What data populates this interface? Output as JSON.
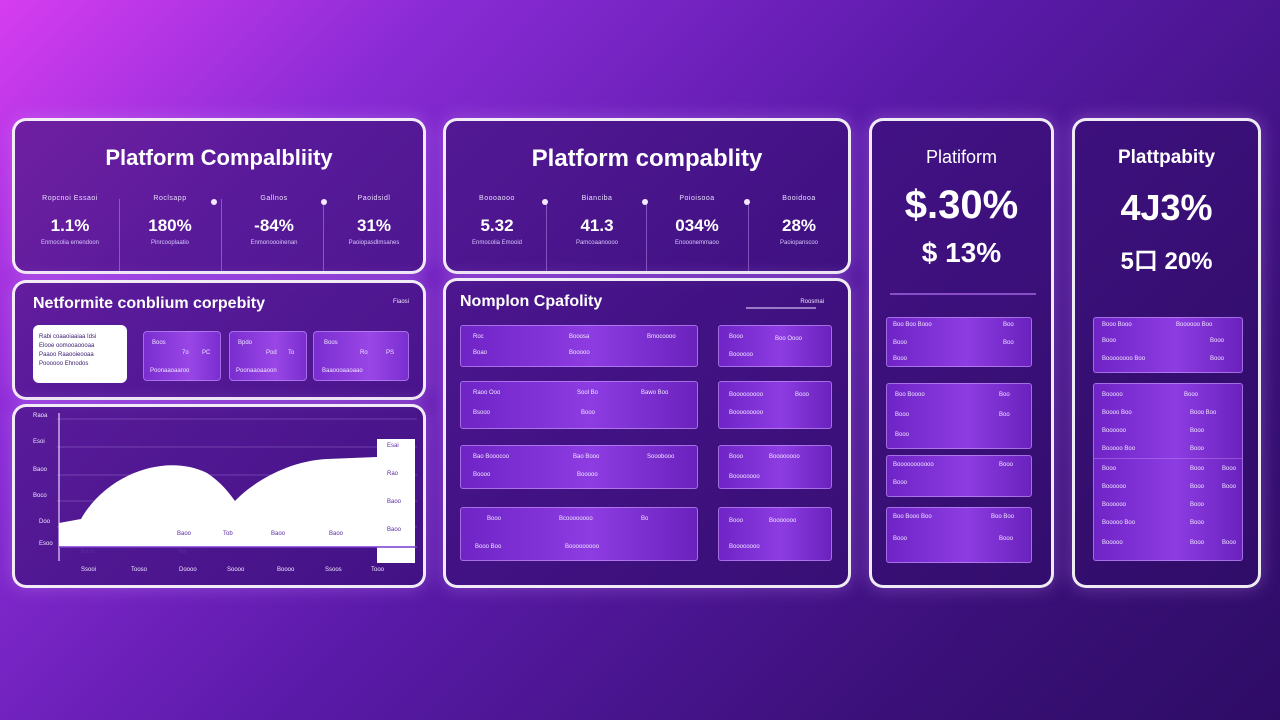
{
  "panel1": {
    "title": "Platform Compalbliity",
    "stats": [
      {
        "label": "Ropcnoi Essaoi",
        "value": "1.1%",
        "sub": "Enmocolia emendoon"
      },
      {
        "label": "Roclsapp",
        "value": "180%",
        "sub": "Pinrcooplaatio"
      },
      {
        "label": "Gallnos",
        "value": "-84%",
        "sub": "Enmonoooinenan"
      },
      {
        "label": "Paoidsidl",
        "value": "31%",
        "sub": "Paoiopasdlmsanes"
      }
    ],
    "section_title": "Netformite conblium corpebity",
    "section_tag": "Fiaosi",
    "info_lines": [
      "Rabi coaaoiaaiaa Idsi",
      "Elooe oomooaoooaa",
      "Paaoo Raaooieooaa",
      "Poooooo Ehnodos"
    ],
    "mini_cards": [
      {
        "top": "Boos",
        "a": "7o",
        "b": "PC",
        "bottom": "Poonaaoaaroo"
      },
      {
        "top": "Bpdo",
        "a": "Pod",
        "b": "To",
        "bottom": "Poonaaoaaoon"
      },
      {
        "top": "Boos",
        "a": "Ro",
        "b": "PS",
        "bottom": "Baaoooaaoaao"
      }
    ],
    "chart": {
      "y_labels": [
        "Raoa",
        "Esoi",
        "Baoo",
        "Boco",
        "Doo",
        "Esoo"
      ],
      "inner_labels": [
        "Baoo",
        "Baoo",
        "Tob",
        "Baoo",
        "Baoo",
        "Yos"
      ],
      "x_labels": [
        "Ssooi",
        "Tooso",
        "Doooo",
        "Soooo",
        "Boooo",
        "Ssoos",
        "Tooo"
      ],
      "right_labels": [
        "Esai",
        "Rao",
        "Baoo",
        "Baoo"
      ]
    }
  },
  "panel2": {
    "title": "Platform compablity",
    "stats": [
      {
        "label": "Boooaooo",
        "value": "5.32",
        "sub": "Enmocolia Emooid"
      },
      {
        "label": "Bianciba",
        "value": "41.3",
        "sub": "Pamcoaanoooo"
      },
      {
        "label": "Poioisooa",
        "value": "034%",
        "sub": "Enooonemmaoo"
      },
      {
        "label": "Booidooa",
        "value": "28%",
        "sub": "Paoiopanscoo"
      }
    ],
    "section_title": "Nomplon Cpafolity",
    "section_tag": "Roosmai",
    "rows_left": [
      {
        "a": "Roc",
        "b": "Booosa",
        "c": "Bmocoooo",
        "d": "Boao",
        "e": "Booooo"
      },
      {
        "a": "Raoo Ooo",
        "b": "Sool Bo",
        "c": "Bawo Boo",
        "d": "Bsooo",
        "e": "Booo"
      },
      {
        "a": "Bao Booocoo",
        "b": "Bao Booo",
        "c": "Sooobooo",
        "d": "Boooo",
        "e": "Booooo"
      },
      {
        "a": "Booo",
        "b": "Bcoooooooo",
        "c": "Bo",
        "d": "Booo Boo",
        "e": "Booooooooo"
      }
    ],
    "rows_right": [
      {
        "a": "Booo",
        "b": "Boo Oooo",
        "c": "Boooooo"
      },
      {
        "a": "Booooooooo",
        "b": "Booo",
        "c": "Booooooooo"
      },
      {
        "a": "Booo",
        "b": "Boooooooo",
        "c": "Boooooooo"
      },
      {
        "a": "Booo",
        "b": "Booooooo",
        "c": "Boooooooo"
      }
    ]
  },
  "panel3": {
    "title": "Platiform",
    "value1": "$.30%",
    "value2": "$ 13%",
    "rows": [
      {
        "a": "Boo Boo Booo",
        "b": "Boo",
        "c": "Booo"
      },
      {
        "a": "Boo Boooo",
        "b": "Boo",
        "c": "Booo"
      },
      {
        "a": "Booooooooooo",
        "b": "Booo",
        "c": "Booo"
      },
      {
        "a": "Boo Booo Boo",
        "b": "Boo Boo",
        "c": "Booo"
      }
    ]
  },
  "panel4": {
    "title": "Plattpabity",
    "value1": "4J3%",
    "value2": "5口 20%",
    "rows": [
      {
        "a": "Booo Booo",
        "b": "Boooooo Boo",
        "c": "Booo"
      },
      {
        "a": "Boooooooo Boo",
        "b": "Booo",
        "c": "Booo"
      },
      {
        "a": "Booooo",
        "b": "Booo",
        "c": "Booo"
      },
      {
        "a": "Boooo Boo",
        "b": "Booo Boo",
        "c": "Booo"
      },
      {
        "a": "Boooooo",
        "b": "Booo",
        "c": "Booo"
      },
      {
        "a": "Booooo Boo",
        "b": "Booo",
        "c": "Booo"
      },
      {
        "a": "Booo",
        "b": "Booo",
        "c": "Booo"
      },
      {
        "a": "Boooooo",
        "b": "Booo",
        "c": "Booo"
      }
    ]
  }
}
